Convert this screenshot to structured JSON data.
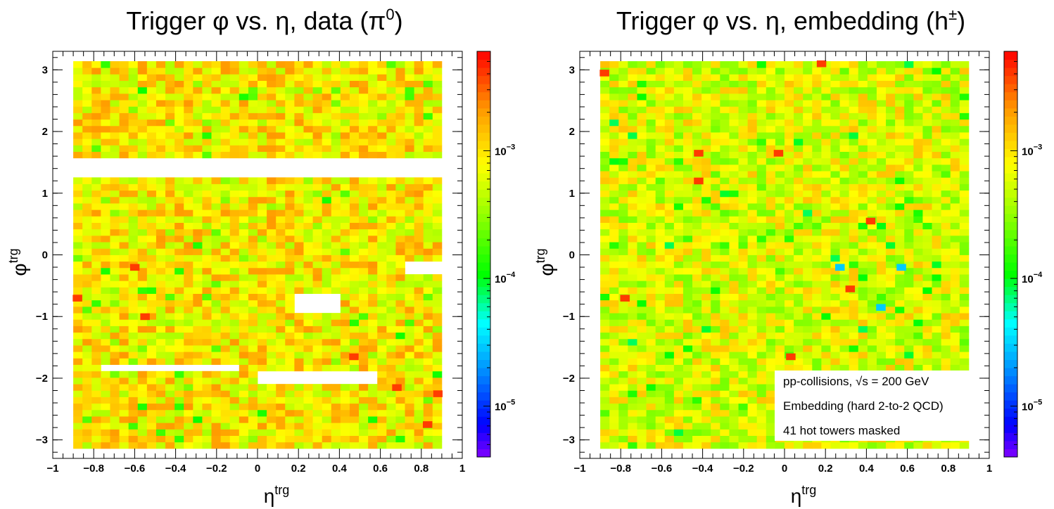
{
  "chart_data": [
    {
      "type": "heatmap",
      "title": "Trigger φ vs. η, data (π",
      "title_sup": "0",
      "title_end": ")",
      "xlabel": "η",
      "xlabel_sup": "trg",
      "ylabel": "φ",
      "ylabel_sup": "trg",
      "xlim": [
        -1,
        1
      ],
      "ylim": [
        -3.3,
        3.3
      ],
      "x_bin_range": [
        -0.9,
        0.9
      ],
      "y_bin_range": [
        -3.14,
        3.14
      ],
      "n_eta_bins": 40,
      "n_phi_bins": 60,
      "z_scale": "log",
      "zlim": [
        4e-06,
        0.006
      ],
      "x_tick_labels": [
        "−1",
        "−0.8",
        "−0.6",
        "−0.4",
        "−0.2",
        "0",
        "0.2",
        "0.4",
        "0.6",
        "0.8",
        "1"
      ],
      "x_tick_values": [
        -1,
        -0.8,
        -0.6,
        -0.4,
        -0.2,
        0,
        0.2,
        0.4,
        0.6,
        0.8,
        1
      ],
      "y_tick_labels": [
        "−3",
        "−2",
        "−1",
        "0",
        "1",
        "2",
        "3"
      ],
      "y_tick_values": [
        -3,
        -2,
        -1,
        0,
        1,
        2,
        3
      ],
      "z_tick_labels": [
        "10",
        "10",
        "10"
      ],
      "z_tick_exponents": [
        "−5",
        "−4",
        "−3"
      ],
      "z_tick_values": [
        1e-05,
        0.0001,
        0.001
      ],
      "typical_value": 0.0009,
      "masked_regions": [
        {
          "eta": [
            -0.9,
            0.9
          ],
          "phi": [
            1.25,
            1.55
          ]
        },
        {
          "eta": [
            -0.75,
            -0.1
          ],
          "phi": [
            -1.85,
            -1.75
          ]
        },
        {
          "eta": [
            0,
            0.6
          ],
          "phi": [
            -2.05,
            -1.9
          ]
        },
        {
          "eta": [
            0.2,
            0.4
          ],
          "phi": [
            -0.9,
            -0.65
          ]
        },
        {
          "eta": [
            0.7,
            0.9
          ],
          "phi": [
            -0.3,
            -0.15
          ]
        }
      ],
      "hot_spots": [
        {
          "eta": -0.6,
          "phi": -0.2,
          "value": 0.004
        },
        {
          "eta": -0.55,
          "phi": -1.0,
          "value": 0.004
        },
        {
          "eta": -0.88,
          "phi": -0.7,
          "value": 0.004
        },
        {
          "eta": 0.47,
          "phi": -1.65,
          "value": 0.004
        },
        {
          "eta": 0.68,
          "phi": -2.15,
          "value": 0.004
        },
        {
          "eta": 0.83,
          "phi": -2.75,
          "value": 0.004
        },
        {
          "eta": 0.88,
          "phi": -2.25,
          "value": 0.004
        }
      ]
    },
    {
      "type": "heatmap",
      "title": "Trigger φ vs. η, embedding (h",
      "title_sup": "±",
      "title_end": ")",
      "xlabel": "η",
      "xlabel_sup": "trg",
      "ylabel": "φ",
      "ylabel_sup": "trg",
      "xlim": [
        -1,
        1
      ],
      "ylim": [
        -3.3,
        3.3
      ],
      "x_bin_range": [
        -0.9,
        0.9
      ],
      "y_bin_range": [
        -3.14,
        3.14
      ],
      "n_eta_bins": 40,
      "n_phi_bins": 60,
      "z_scale": "log",
      "zlim": [
        4e-06,
        0.006
      ],
      "x_tick_labels": [
        "−1",
        "−0.8",
        "−0.6",
        "−0.4",
        "−0.2",
        "0",
        "0.2",
        "0.4",
        "0.6",
        "0.8",
        "1"
      ],
      "x_tick_values": [
        -1,
        -0.8,
        -0.6,
        -0.4,
        -0.2,
        0,
        0.2,
        0.4,
        0.6,
        0.8,
        1
      ],
      "y_tick_labels": [
        "−3",
        "−2",
        "−1",
        "0",
        "1",
        "2",
        "3"
      ],
      "y_tick_values": [
        -3,
        -2,
        -1,
        0,
        1,
        2,
        3
      ],
      "z_tick_labels": [
        "10",
        "10",
        "10"
      ],
      "z_tick_exponents": [
        "−5",
        "−4",
        "−3"
      ],
      "z_tick_values": [
        1e-05,
        0.0001,
        0.001
      ],
      "typical_value": 0.0006,
      "masked_regions": [],
      "hot_spots": [
        {
          "eta": -0.88,
          "phi": 2.95,
          "value": 0.004
        },
        {
          "eta": 0.18,
          "phi": 3.1,
          "value": 0.004
        },
        {
          "eta": -0.42,
          "phi": 1.65,
          "value": 0.004
        },
        {
          "eta": -0.03,
          "phi": 1.65,
          "value": 0.004
        },
        {
          "eta": -0.42,
          "phi": 1.2,
          "value": 0.004
        },
        {
          "eta": 0.42,
          "phi": 0.55,
          "value": 0.004
        },
        {
          "eta": -0.78,
          "phi": -0.7,
          "value": 0.004
        },
        {
          "eta": 0.32,
          "phi": -0.55,
          "value": 0.004
        },
        {
          "eta": 0.03,
          "phi": -1.65,
          "value": 0.004
        },
        {
          "eta": 0.27,
          "phi": -0.2,
          "value": 3e-05
        },
        {
          "eta": 0.57,
          "phi": -0.2,
          "value": 3e-05
        },
        {
          "eta": 0.47,
          "phi": -0.85,
          "value": 3e-05
        }
      ],
      "legend": {
        "lines": [
          "pp-collisions, √s = 200 GeV",
          "Embedding (hard 2-to-2 QCD)",
          "41 hot towers masked"
        ],
        "placement": "bottom-right"
      }
    }
  ]
}
